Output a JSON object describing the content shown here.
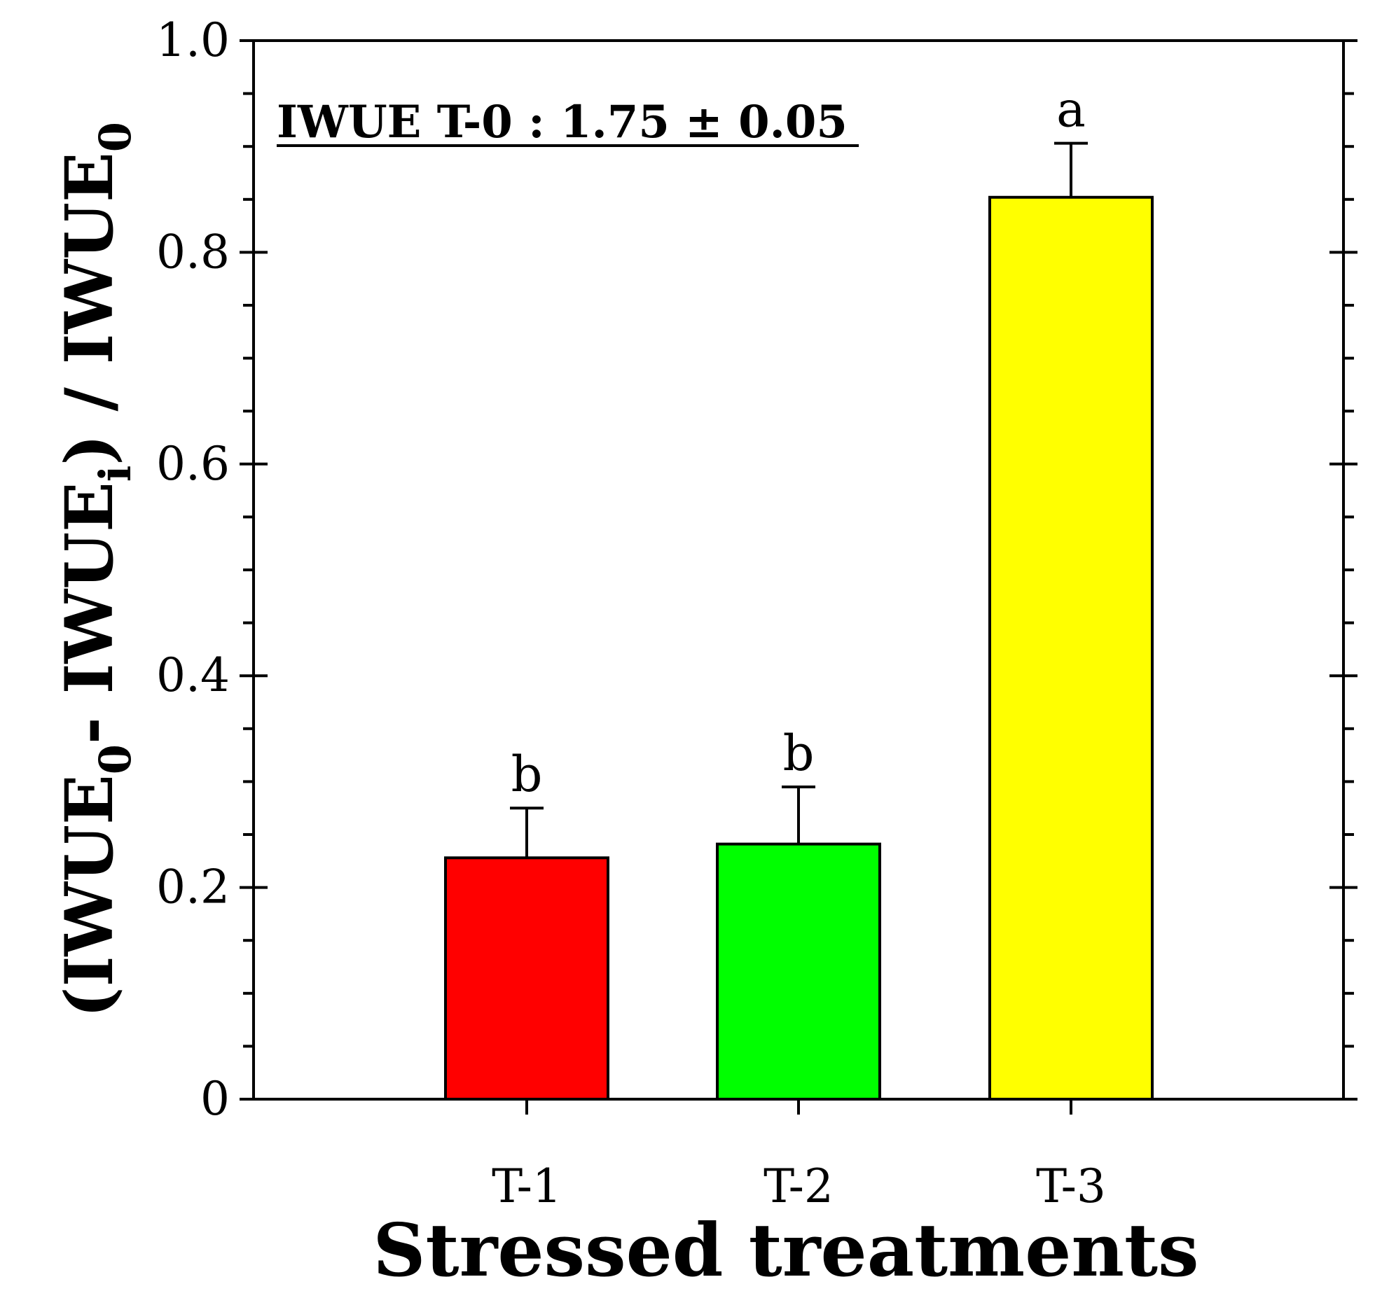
{
  "chart_data": {
    "type": "bar",
    "categories": [
      "T-1",
      "T-2",
      "T-3"
    ],
    "values": [
      0.228,
      0.241,
      0.852
    ],
    "errors": [
      0.047,
      0.054,
      0.051
    ],
    "significance": [
      "b",
      "b",
      "a"
    ],
    "colors": [
      "#ff0000",
      "#00ff00",
      "#ffff00"
    ],
    "xlabel": "Stressed treatments",
    "ylabel": {
      "open": "(IWUE",
      "sub0": "0",
      "minus": "- IWUE",
      "subi": "i",
      "close": ") / IWUE",
      "sub0b": "0"
    },
    "ylim": [
      0,
      1.0
    ],
    "yticks": [
      "0",
      "0.2",
      "0.4",
      "0.6",
      "0.8",
      "1.0"
    ],
    "annotation": "IWUE T-0 : 1.75 ± 0.05"
  }
}
